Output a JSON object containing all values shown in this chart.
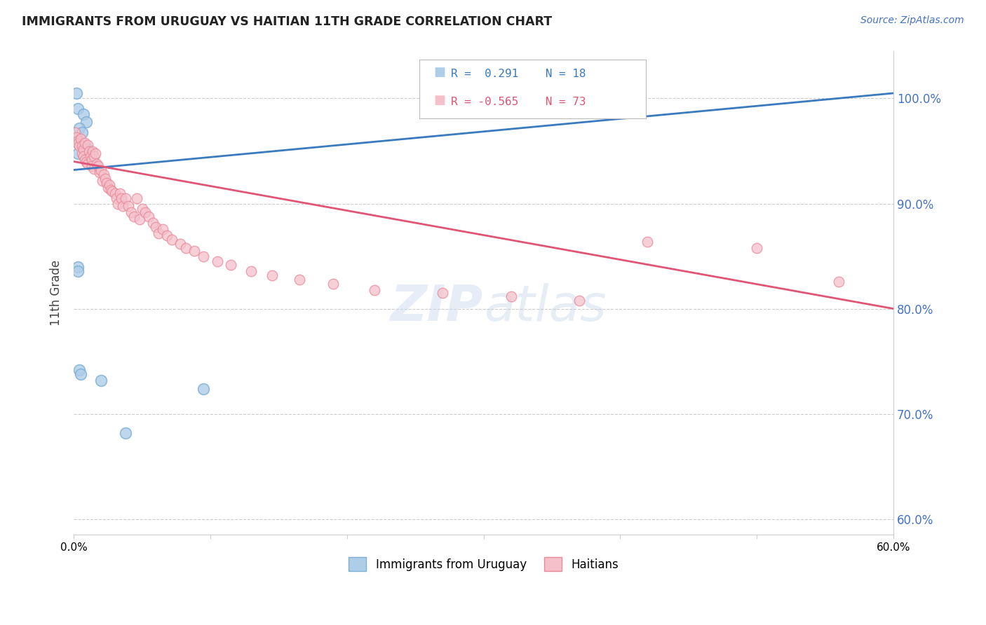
{
  "title": "IMMIGRANTS FROM URUGUAY VS HAITIAN 11TH GRADE CORRELATION CHART",
  "source": "Source: ZipAtlas.com",
  "ylabel": "11th Grade",
  "xlim": [
    0.0,
    0.6
  ],
  "ylim": [
    0.585,
    1.045
  ],
  "yticks": [
    0.6,
    0.7,
    0.8,
    0.9,
    1.0
  ],
  "ytick_labels": [
    "60.0%",
    "70.0%",
    "80.0%",
    "90.0%",
    "100.0%"
  ],
  "xticks": [
    0.0,
    0.1,
    0.2,
    0.3,
    0.4,
    0.5,
    0.6
  ],
  "xtick_labels": [
    "0.0%",
    "",
    "",
    "",
    "",
    "",
    "60.0%"
  ],
  "legend_r_blue": "R =  0.291",
  "legend_n_blue": "N = 18",
  "legend_r_pink": "R = -0.565",
  "legend_n_pink": "N = 73",
  "blue_scatter_color": "#aecde8",
  "blue_edge_color": "#7bafd4",
  "pink_scatter_color": "#f5c0ca",
  "pink_edge_color": "#e88a9a",
  "blue_line_color": "#3a7abf",
  "pink_line_color": "#e05575",
  "right_axis_color": "#4472c4",
  "grid_color": "#cccccc",
  "title_color": "#222222",
  "watermark_color_zip": "#b0c4de",
  "watermark_color_atlas": "#c8d8e8",
  "blue_line_x0": 0.0,
  "blue_line_y0": 0.932,
  "blue_line_x1": 0.6,
  "blue_line_y1": 1.005,
  "pink_line_x0": 0.0,
  "pink_line_x1": 0.6,
  "pink_line_y0": 0.94,
  "pink_line_y1": 0.8,
  "uruguay_x": [
    0.002,
    0.003,
    0.007,
    0.009,
    0.004,
    0.006,
    0.002,
    0.004,
    0.009,
    0.011,
    0.003,
    0.003,
    0.003,
    0.004,
    0.005,
    0.02,
    0.095,
    0.038
  ],
  "uruguay_y": [
    1.005,
    0.99,
    0.985,
    0.978,
    0.972,
    0.968,
    0.962,
    0.958,
    0.953,
    0.95,
    0.948,
    0.84,
    0.836,
    0.742,
    0.738,
    0.732,
    0.724,
    0.682
  ],
  "haiti_x": [
    0.001,
    0.002,
    0.003,
    0.003,
    0.004,
    0.005,
    0.006,
    0.006,
    0.007,
    0.007,
    0.008,
    0.008,
    0.009,
    0.01,
    0.01,
    0.011,
    0.012,
    0.013,
    0.013,
    0.014,
    0.015,
    0.015,
    0.016,
    0.017,
    0.018,
    0.019,
    0.02,
    0.021,
    0.022,
    0.023,
    0.024,
    0.025,
    0.026,
    0.027,
    0.028,
    0.03,
    0.031,
    0.032,
    0.034,
    0.035,
    0.036,
    0.038,
    0.04,
    0.042,
    0.044,
    0.046,
    0.048,
    0.05,
    0.052,
    0.055,
    0.058,
    0.06,
    0.062,
    0.065,
    0.068,
    0.072,
    0.078,
    0.082,
    0.088,
    0.095,
    0.105,
    0.115,
    0.13,
    0.145,
    0.165,
    0.19,
    0.22,
    0.27,
    0.32,
    0.37,
    0.42,
    0.5,
    0.56
  ],
  "haiti_y": [
    0.968,
    0.963,
    0.96,
    0.957,
    0.955,
    0.962,
    0.955,
    0.948,
    0.952,
    0.945,
    0.958,
    0.942,
    0.94,
    0.956,
    0.938,
    0.95,
    0.945,
    0.942,
    0.936,
    0.95,
    0.945,
    0.933,
    0.948,
    0.938,
    0.936,
    0.93,
    0.932,
    0.922,
    0.928,
    0.924,
    0.92,
    0.915,
    0.918,
    0.913,
    0.912,
    0.91,
    0.905,
    0.9,
    0.91,
    0.905,
    0.898,
    0.905,
    0.898,
    0.892,
    0.888,
    0.905,
    0.885,
    0.895,
    0.892,
    0.888,
    0.882,
    0.878,
    0.872,
    0.876,
    0.87,
    0.866,
    0.862,
    0.858,
    0.855,
    0.85,
    0.845,
    0.842,
    0.836,
    0.832,
    0.828,
    0.824,
    0.818,
    0.815,
    0.812,
    0.808,
    0.864,
    0.858,
    0.826
  ]
}
